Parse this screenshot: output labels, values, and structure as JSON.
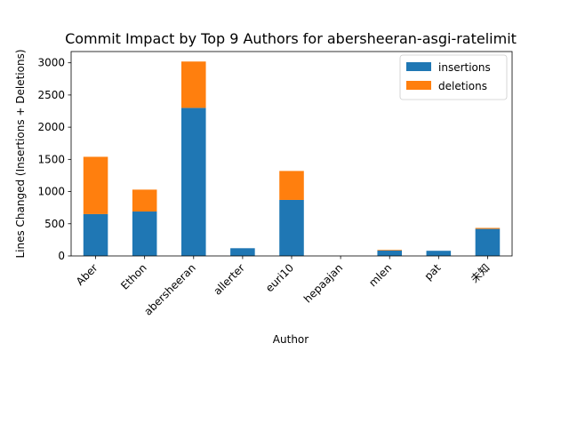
{
  "chart_data": {
    "type": "bar",
    "stacked": true,
    "title": "Commit Impact by Top 9 Authors for abersheeran-asgi-ratelimit",
    "xlabel": "Author",
    "ylabel": "Lines Changed (Insertions + Deletions)",
    "categories": [
      "Aber",
      "Ethon",
      "abersheeran",
      "allerter",
      "euri10",
      "hepaajan",
      "mlen",
      "pat",
      "未知"
    ],
    "series": [
      {
        "name": "insertions",
        "color": "#1f77b4",
        "values": [
          650,
          690,
          2300,
          120,
          870,
          0,
          85,
          80,
          420
        ]
      },
      {
        "name": "deletions",
        "color": "#ff7f0e",
        "values": [
          890,
          340,
          720,
          0,
          450,
          0,
          10,
          0,
          15
        ]
      }
    ],
    "ylim": [
      0,
      3175
    ],
    "yticks": [
      0,
      500,
      1000,
      1500,
      2000,
      2500,
      3000
    ],
    "grid": false,
    "legend_position": "top-right"
  }
}
